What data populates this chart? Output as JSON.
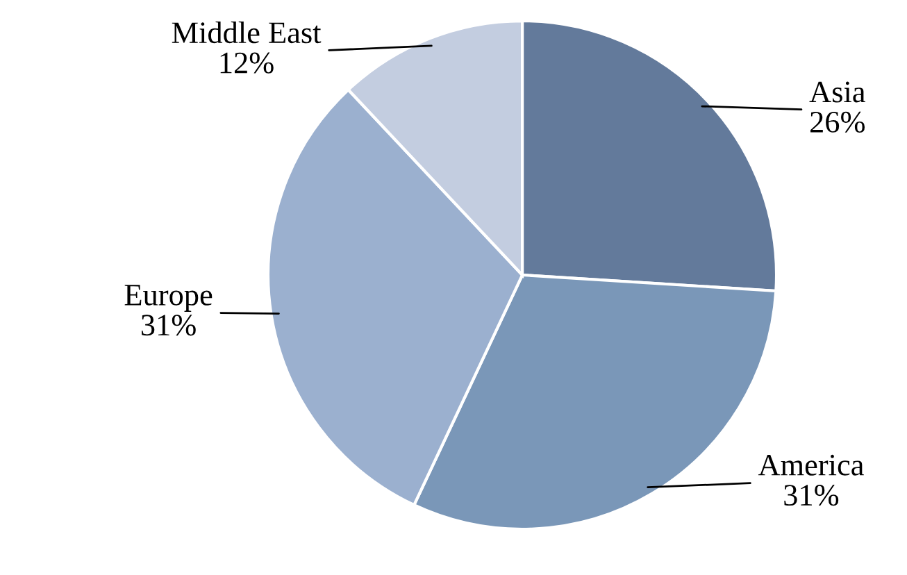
{
  "chart_data": {
    "type": "pie",
    "categories": [
      "Asia",
      "America",
      "Europe",
      "Middle East"
    ],
    "values": [
      26,
      31,
      31,
      12
    ],
    "colors": [
      "#637a9b",
      "#7a97b8",
      "#9bb0cf",
      "#c3cde0"
    ],
    "value_labels": [
      "26%",
      "31%",
      "31%",
      "12%"
    ]
  }
}
